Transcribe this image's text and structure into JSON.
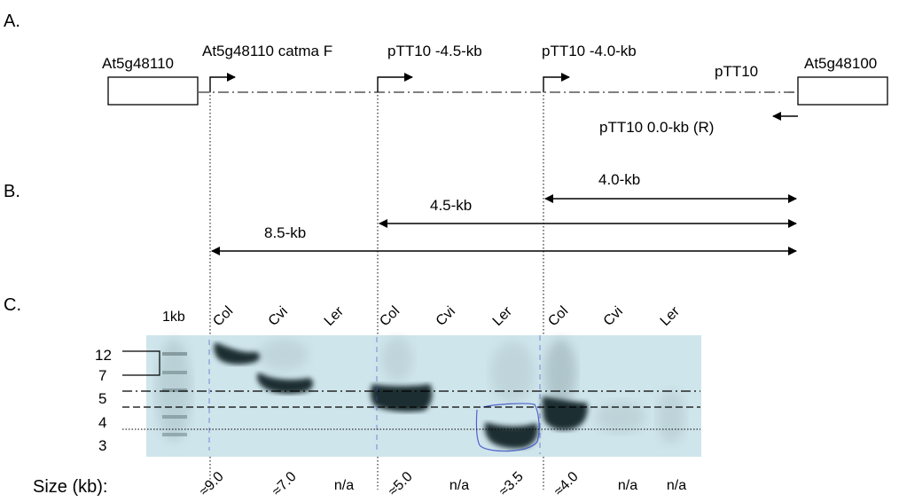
{
  "sections": {
    "a": "A.",
    "b": "B.",
    "c": "C."
  },
  "genes": {
    "left": "At5g48110",
    "right": "At5g48100"
  },
  "primers": {
    "catma_f": "At5g48110 catma F",
    "p45": "pTT10 -4.5-kb",
    "p40": "pTT10 -4.0-kb",
    "pTT10": "pTT10",
    "reverse": "pTT10 0.0-kb (R)"
  },
  "fragments": {
    "f40": "4.0-kb",
    "f45": "4.5-kb",
    "f85": "8.5-kb"
  },
  "gel": {
    "ladder_label": "1kb",
    "lanes": [
      "Col",
      "Cvi",
      "Ler",
      "Col",
      "Cvi",
      "Ler",
      "Col",
      "Cvi",
      "Ler"
    ],
    "markers": [
      "12",
      "7",
      "5",
      "4",
      "3"
    ],
    "background_color": "#cfe5ec",
    "band_color": "#1a2f30"
  },
  "sizes": {
    "label": "Size (kb):",
    "values": [
      "≈9.0",
      "≈7.0",
      "n/a",
      "≈5.0",
      "n/a",
      "≈3.5",
      "≈4.0",
      "n/a",
      "n/a"
    ]
  }
}
